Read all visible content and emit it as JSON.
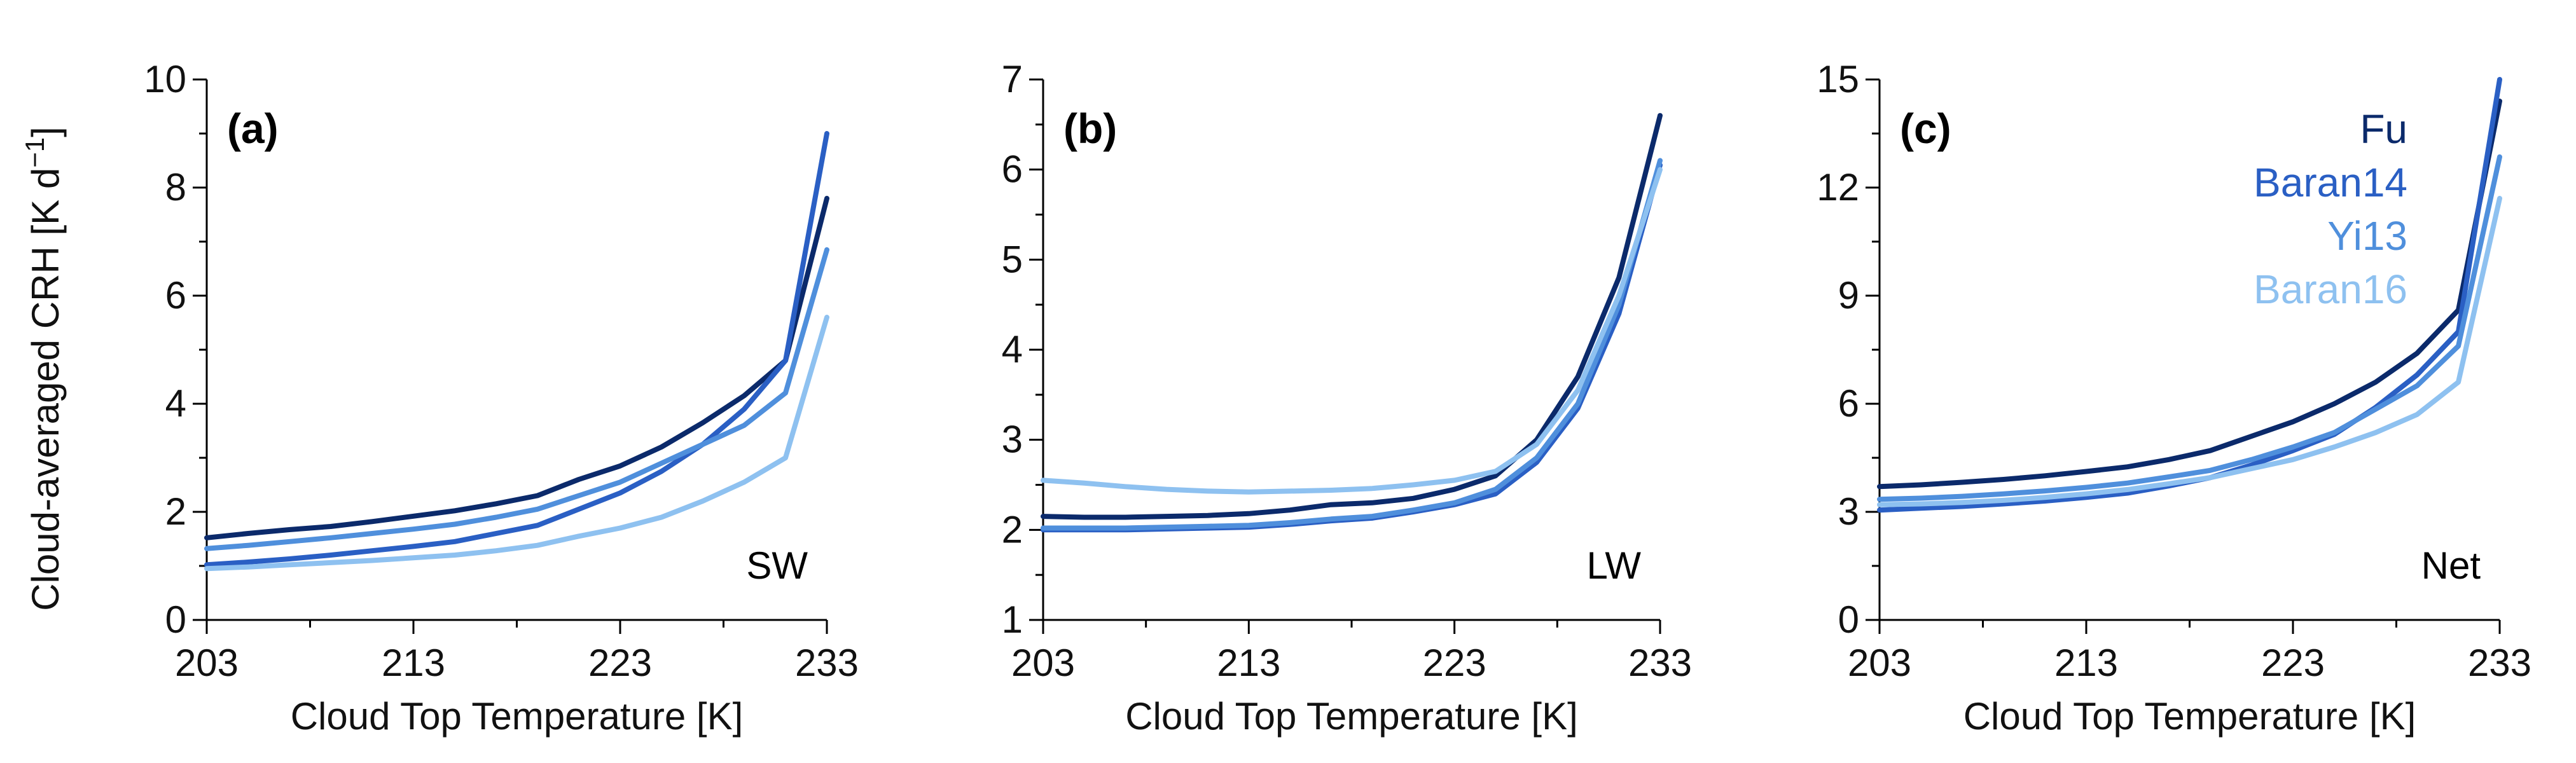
{
  "figure": {
    "ylabel_main": "Cloud-averaged CRH [K d",
    "ylabel_exp": "−1",
    "ylabel_end": "]",
    "xlabel": "Cloud Top Temperature [K]"
  },
  "colors": {
    "Fu": "#0b2a6b",
    "Baran14": "#2a5fc4",
    "Yi13": "#4f8fdc",
    "Baran16": "#8ec1f0"
  },
  "chart_data": [
    {
      "type": "line",
      "panel": "(a)",
      "tag": "SW",
      "xlabel": "Cloud Top Temperature [K]",
      "ylabel": "Cloud-averaged CRH [K d−1]",
      "xlim": [
        203,
        233
      ],
      "ylim": [
        0,
        10
      ],
      "xticks": [
        203,
        213,
        223,
        233
      ],
      "yticks": [
        0,
        2,
        4,
        6,
        8,
        10
      ],
      "grid": false,
      "x": [
        203,
        205,
        207,
        209,
        211,
        213,
        215,
        217,
        219,
        221,
        223,
        225,
        227,
        229,
        231,
        233
      ],
      "series": [
        {
          "name": "Fu",
          "values": [
            1.52,
            1.6,
            1.67,
            1.73,
            1.82,
            1.92,
            2.02,
            2.15,
            2.3,
            2.6,
            2.85,
            3.2,
            3.65,
            4.15,
            4.8,
            7.8
          ]
        },
        {
          "name": "Baran14",
          "values": [
            1.02,
            1.07,
            1.13,
            1.2,
            1.28,
            1.36,
            1.45,
            1.6,
            1.75,
            2.05,
            2.35,
            2.75,
            3.25,
            3.9,
            4.8,
            9.0
          ]
        },
        {
          "name": "Yi13",
          "values": [
            1.32,
            1.38,
            1.45,
            1.52,
            1.6,
            1.68,
            1.77,
            1.9,
            2.05,
            2.3,
            2.55,
            2.9,
            3.25,
            3.6,
            4.2,
            6.85
          ]
        },
        {
          "name": "Baran16",
          "values": [
            0.95,
            0.98,
            1.02,
            1.06,
            1.1,
            1.15,
            1.2,
            1.28,
            1.38,
            1.55,
            1.7,
            1.9,
            2.2,
            2.55,
            3.0,
            5.6
          ]
        }
      ]
    },
    {
      "type": "line",
      "panel": "(b)",
      "tag": "LW",
      "xlabel": "Cloud Top Temperature [K]",
      "ylabel": "",
      "xlim": [
        203,
        233
      ],
      "ylim": [
        1,
        7
      ],
      "xticks": [
        203,
        213,
        223,
        233
      ],
      "yticks": [
        1,
        2,
        3,
        4,
        5,
        6,
        7
      ],
      "grid": false,
      "x": [
        203,
        205,
        207,
        209,
        211,
        213,
        215,
        217,
        219,
        221,
        223,
        225,
        227,
        229,
        231,
        233
      ],
      "series": [
        {
          "name": "Fu",
          "values": [
            2.15,
            2.14,
            2.14,
            2.15,
            2.16,
            2.18,
            2.22,
            2.28,
            2.3,
            2.35,
            2.45,
            2.6,
            3.0,
            3.7,
            4.8,
            6.6
          ]
        },
        {
          "name": "Baran14",
          "values": [
            2.0,
            2.0,
            2.0,
            2.01,
            2.02,
            2.03,
            2.06,
            2.1,
            2.13,
            2.2,
            2.28,
            2.4,
            2.75,
            3.35,
            4.4,
            6.05
          ]
        },
        {
          "name": "Yi13",
          "values": [
            2.02,
            2.02,
            2.02,
            2.03,
            2.04,
            2.05,
            2.08,
            2.12,
            2.15,
            2.22,
            2.3,
            2.45,
            2.8,
            3.4,
            4.5,
            6.1
          ]
        },
        {
          "name": "Baran16",
          "values": [
            2.55,
            2.52,
            2.48,
            2.45,
            2.43,
            2.42,
            2.43,
            2.44,
            2.46,
            2.5,
            2.55,
            2.65,
            2.95,
            3.55,
            4.6,
            6.0
          ]
        }
      ]
    },
    {
      "type": "line",
      "panel": "(c)",
      "tag": "Net",
      "xlabel": "Cloud Top Temperature [K]",
      "ylabel": "",
      "xlim": [
        203,
        233
      ],
      "ylim": [
        0,
        15
      ],
      "xticks": [
        203,
        213,
        223,
        233
      ],
      "yticks": [
        0,
        3,
        6,
        9,
        12,
        15
      ],
      "grid": false,
      "legend": "top-right",
      "x": [
        203,
        205,
        207,
        209,
        211,
        213,
        215,
        217,
        219,
        221,
        223,
        225,
        227,
        229,
        231,
        233
      ],
      "series": [
        {
          "name": "Fu",
          "values": [
            3.7,
            3.75,
            3.82,
            3.9,
            4.0,
            4.12,
            4.25,
            4.45,
            4.7,
            5.1,
            5.5,
            6.0,
            6.6,
            7.4,
            8.6,
            14.4
          ]
        },
        {
          "name": "Baran14",
          "values": [
            3.05,
            3.1,
            3.15,
            3.22,
            3.3,
            3.4,
            3.52,
            3.72,
            3.95,
            4.3,
            4.7,
            5.15,
            5.9,
            6.8,
            8.0,
            15.0
          ]
        },
        {
          "name": "Yi13",
          "values": [
            3.35,
            3.38,
            3.43,
            3.5,
            3.58,
            3.68,
            3.8,
            3.97,
            4.15,
            4.45,
            4.8,
            5.2,
            5.85,
            6.5,
            7.6,
            12.85
          ]
        },
        {
          "name": "Baran16",
          "values": [
            3.2,
            3.22,
            3.26,
            3.32,
            3.4,
            3.5,
            3.62,
            3.78,
            3.95,
            4.2,
            4.45,
            4.8,
            5.2,
            5.7,
            6.6,
            11.7
          ]
        }
      ]
    }
  ]
}
